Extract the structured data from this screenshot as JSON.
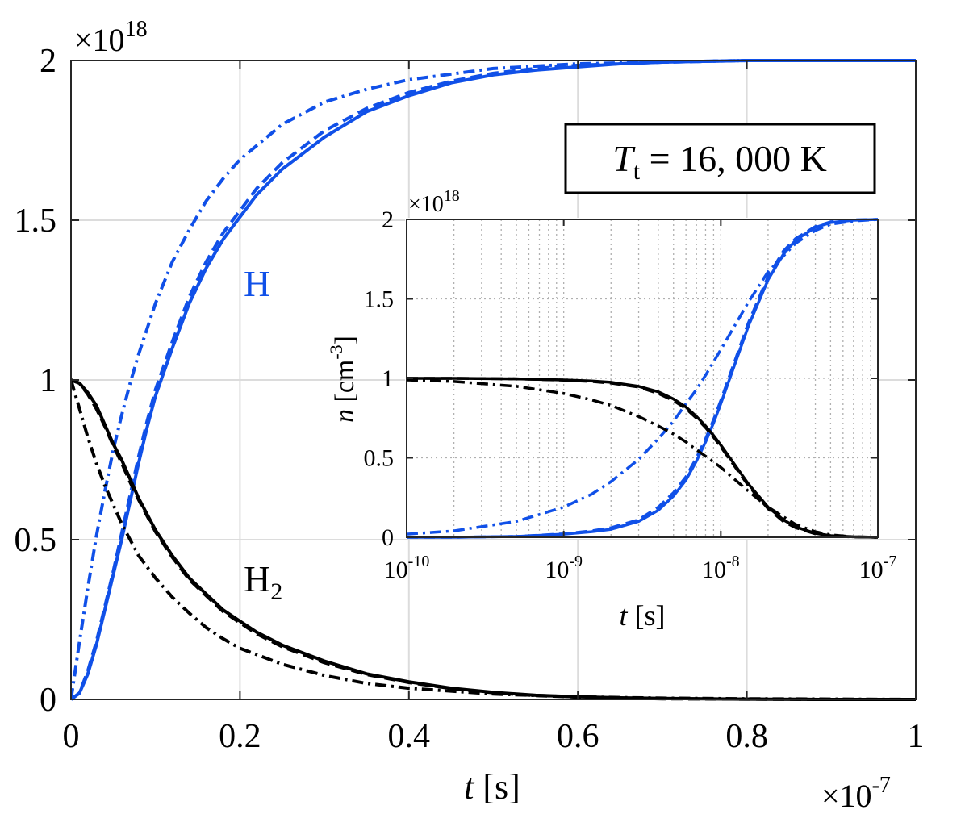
{
  "chart_data": [
    {
      "type": "line",
      "xlabel_var": "t",
      "xlabel_unit": "[s]",
      "x_multiplier": "×10",
      "x_multiplier_exp": "-7",
      "y_multiplier": "×10",
      "y_multiplier_exp": "18",
      "xlim": [
        0,
        1
      ],
      "ylim": [
        0,
        2
      ],
      "xticks": [
        "0",
        "0.2",
        "0.4",
        "0.6",
        "0.8",
        "1"
      ],
      "yticks": [
        "0",
        "0.5",
        "1",
        "1.5",
        "2"
      ],
      "grid": true,
      "annotation": {
        "var": "T",
        "sub": "t",
        "value": "= 16, 000 K"
      },
      "species_labels": [
        {
          "text": "H",
          "sub": "",
          "color": "#1050e8"
        },
        {
          "text": "H",
          "sub": "2",
          "color": "#000000"
        }
      ],
      "series": [
        {
          "species": "H",
          "style": "solid",
          "color": "#1050e8",
          "x": [
            0,
            0.01,
            0.02,
            0.03,
            0.04,
            0.05,
            0.06,
            0.07,
            0.08,
            0.09,
            0.1,
            0.12,
            0.14,
            0.16,
            0.18,
            0.2,
            0.22,
            0.25,
            0.3,
            0.35,
            0.4,
            0.45,
            0.5,
            0.55,
            0.6,
            0.65,
            0.7,
            0.8,
            0.9,
            1.0
          ],
          "y": [
            0,
            0.02,
            0.08,
            0.17,
            0.28,
            0.39,
            0.5,
            0.62,
            0.74,
            0.85,
            0.95,
            1.1,
            1.24,
            1.35,
            1.44,
            1.51,
            1.58,
            1.66,
            1.76,
            1.84,
            1.89,
            1.93,
            1.955,
            1.97,
            1.98,
            1.99,
            1.995,
            2.0,
            2.0,
            2.0
          ]
        },
        {
          "species": "H",
          "style": "dashed",
          "color": "#1050e8",
          "x": [
            0,
            0.01,
            0.02,
            0.03,
            0.04,
            0.05,
            0.06,
            0.07,
            0.08,
            0.09,
            0.1,
            0.12,
            0.14,
            0.16,
            0.18,
            0.2,
            0.22,
            0.25,
            0.3,
            0.35,
            0.4,
            0.45,
            0.5,
            0.55,
            0.6,
            0.65,
            0.7,
            0.8,
            0.9,
            1.0
          ],
          "y": [
            0,
            0.02,
            0.09,
            0.18,
            0.29,
            0.4,
            0.52,
            0.64,
            0.76,
            0.87,
            0.97,
            1.12,
            1.26,
            1.37,
            1.46,
            1.53,
            1.6,
            1.68,
            1.78,
            1.85,
            1.9,
            1.935,
            1.96,
            1.975,
            1.985,
            1.99,
            1.995,
            2.0,
            2.0,
            2.0
          ]
        },
        {
          "species": "H",
          "style": "dashdot",
          "color": "#1050e8",
          "x": [
            0,
            0.01,
            0.02,
            0.03,
            0.04,
            0.05,
            0.06,
            0.07,
            0.08,
            0.1,
            0.12,
            0.14,
            0.16,
            0.18,
            0.2,
            0.25,
            0.3,
            0.35,
            0.4,
            0.5,
            0.6,
            0.7,
            0.8,
            1.0
          ],
          "y": [
            0,
            0.18,
            0.35,
            0.51,
            0.65,
            0.78,
            0.89,
            0.99,
            1.08,
            1.24,
            1.37,
            1.47,
            1.56,
            1.63,
            1.69,
            1.8,
            1.87,
            1.91,
            1.94,
            1.975,
            1.99,
            1.995,
            2.0,
            2.0
          ]
        },
        {
          "species": "H2",
          "style": "solid",
          "color": "#000000",
          "x": [
            0,
            0.01,
            0.02,
            0.03,
            0.04,
            0.05,
            0.06,
            0.07,
            0.08,
            0.09,
            0.1,
            0.12,
            0.14,
            0.16,
            0.18,
            0.2,
            0.22,
            0.25,
            0.3,
            0.35,
            0.4,
            0.45,
            0.5,
            0.55,
            0.6,
            0.65,
            0.7,
            0.8,
            0.9,
            1.0
          ],
          "y": [
            1.0,
            0.99,
            0.96,
            0.92,
            0.86,
            0.8,
            0.75,
            0.69,
            0.63,
            0.58,
            0.53,
            0.45,
            0.38,
            0.33,
            0.28,
            0.245,
            0.21,
            0.17,
            0.12,
            0.08,
            0.055,
            0.035,
            0.022,
            0.013,
            0.008,
            0.005,
            0.003,
            0.001,
            0,
            0
          ]
        },
        {
          "species": "H2",
          "style": "dashed",
          "color": "#000000",
          "x": [
            0,
            0.01,
            0.02,
            0.03,
            0.04,
            0.05,
            0.06,
            0.07,
            0.08,
            0.09,
            0.1,
            0.12,
            0.14,
            0.16,
            0.18,
            0.2,
            0.22,
            0.25,
            0.3,
            0.35,
            0.4,
            0.45,
            0.5,
            0.55,
            0.6,
            0.65,
            0.7,
            0.8,
            0.9,
            1.0
          ],
          "y": [
            1.0,
            0.99,
            0.955,
            0.91,
            0.855,
            0.795,
            0.74,
            0.68,
            0.625,
            0.575,
            0.525,
            0.445,
            0.375,
            0.325,
            0.275,
            0.24,
            0.205,
            0.165,
            0.115,
            0.078,
            0.053,
            0.034,
            0.021,
            0.012,
            0.007,
            0.004,
            0.002,
            0.001,
            0,
            0
          ]
        },
        {
          "species": "H2",
          "style": "dashdot",
          "color": "#000000",
          "x": [
            0,
            0.01,
            0.02,
            0.03,
            0.04,
            0.05,
            0.06,
            0.07,
            0.08,
            0.1,
            0.12,
            0.14,
            0.16,
            0.18,
            0.2,
            0.25,
            0.3,
            0.35,
            0.4,
            0.5,
            0.6,
            0.7,
            0.8,
            1.0
          ],
          "y": [
            1.0,
            0.91,
            0.82,
            0.74,
            0.67,
            0.61,
            0.55,
            0.5,
            0.45,
            0.38,
            0.32,
            0.27,
            0.225,
            0.19,
            0.16,
            0.11,
            0.075,
            0.05,
            0.035,
            0.017,
            0.008,
            0.004,
            0.002,
            0
          ]
        }
      ]
    },
    {
      "type": "line",
      "role": "inset",
      "xscale": "log",
      "xlabel_var": "t",
      "xlabel_unit": "[s]",
      "ylabel_var": "n",
      "ylabel_unit": "[cm",
      "ylabel_unit_exp": "-3",
      "ylabel_unit_close": "]",
      "y_multiplier": "×10",
      "y_multiplier_exp": "18",
      "xlim": [
        1e-10,
        1e-07
      ],
      "ylim": [
        0,
        2
      ],
      "xticks": [
        {
          "value": 1e-10,
          "base": "10",
          "exp": "-10"
        },
        {
          "value": 1e-09,
          "base": "10",
          "exp": "-9"
        },
        {
          "value": 1e-08,
          "base": "10",
          "exp": "-8"
        },
        {
          "value": 1e-07,
          "base": "10",
          "exp": "-7"
        }
      ],
      "yticks": [
        "0",
        "0.5",
        "1",
        "1.5",
        "2"
      ],
      "grid": "dotted",
      "series": [
        {
          "species": "H",
          "style": "solid",
          "color": "#1050e8",
          "x": [
            1e-10,
            2e-10,
            5e-10,
            1e-09,
            1.5e-09,
            2e-09,
            3e-09,
            4e-09,
            5e-09,
            6e-09,
            7e-09,
            8e-09,
            9e-09,
            1e-08,
            1.2e-08,
            1.5e-08,
            2e-08,
            2.5e-08,
            3e-08,
            4e-08,
            5e-08,
            7e-08,
            1e-07
          ],
          "y": [
            0,
            0,
            0.005,
            0.02,
            0.035,
            0.05,
            0.1,
            0.17,
            0.26,
            0.36,
            0.48,
            0.6,
            0.72,
            0.84,
            1.06,
            1.33,
            1.62,
            1.78,
            1.87,
            1.95,
            1.98,
            1.995,
            2.0
          ]
        },
        {
          "species": "H",
          "style": "dashed",
          "color": "#1050e8",
          "x": [
            1e-10,
            2e-10,
            5e-10,
            1e-09,
            1.5e-09,
            2e-09,
            3e-09,
            4e-09,
            5e-09,
            6e-09,
            7e-09,
            8e-09,
            9e-09,
            1e-08,
            1.2e-08,
            1.5e-08,
            2e-08,
            2.5e-08,
            3e-08,
            4e-08,
            5e-08,
            7e-08,
            1e-07
          ],
          "y": [
            0,
            0,
            0.005,
            0.022,
            0.04,
            0.06,
            0.11,
            0.19,
            0.28,
            0.38,
            0.5,
            0.62,
            0.74,
            0.86,
            1.08,
            1.35,
            1.64,
            1.8,
            1.88,
            1.955,
            1.985,
            1.997,
            2.0
          ]
        },
        {
          "species": "H",
          "style": "dashdot",
          "color": "#1050e8",
          "x": [
            1e-10,
            2e-10,
            5e-10,
            1e-09,
            1.5e-09,
            2e-09,
            3e-09,
            4e-09,
            5e-09,
            6e-09,
            7e-09,
            8e-09,
            1e-08,
            1.5e-08,
            2e-08,
            3e-08,
            4e-08,
            5e-08,
            7e-08,
            1e-07
          ],
          "y": [
            0.02,
            0.04,
            0.1,
            0.19,
            0.27,
            0.35,
            0.49,
            0.62,
            0.73,
            0.84,
            0.93,
            1.02,
            1.18,
            1.48,
            1.67,
            1.85,
            1.93,
            1.97,
            1.99,
            2.0
          ]
        },
        {
          "species": "H2",
          "style": "solid",
          "color": "#000000",
          "x": [
            1e-10,
            2e-10,
            5e-10,
            1e-09,
            1.5e-09,
            2e-09,
            3e-09,
            4e-09,
            5e-09,
            6e-09,
            7e-09,
            8e-09,
            9e-09,
            1e-08,
            1.2e-08,
            1.5e-08,
            2e-08,
            2.5e-08,
            3e-08,
            4e-08,
            5e-08,
            7e-08,
            1e-07
          ],
          "y": [
            1.0,
            1.0,
            0.997,
            0.99,
            0.983,
            0.975,
            0.95,
            0.915,
            0.87,
            0.82,
            0.76,
            0.7,
            0.64,
            0.58,
            0.47,
            0.335,
            0.19,
            0.11,
            0.065,
            0.025,
            0.01,
            0.003,
            0
          ]
        },
        {
          "species": "H2",
          "style": "dashed",
          "color": "#000000",
          "x": [
            1e-10,
            2e-10,
            5e-10,
            1e-09,
            1.5e-09,
            2e-09,
            3e-09,
            4e-09,
            5e-09,
            6e-09,
            7e-09,
            8e-09,
            9e-09,
            1e-08,
            1.2e-08,
            1.5e-08,
            2e-08,
            2.5e-08,
            3e-08,
            4e-08,
            5e-08,
            7e-08,
            1e-07
          ],
          "y": [
            1.0,
            1.0,
            0.997,
            0.989,
            0.98,
            0.97,
            0.945,
            0.905,
            0.86,
            0.81,
            0.75,
            0.69,
            0.63,
            0.57,
            0.46,
            0.325,
            0.18,
            0.1,
            0.06,
            0.022,
            0.008,
            0.002,
            0
          ]
        },
        {
          "species": "H2",
          "style": "dashdot",
          "color": "#000000",
          "x": [
            1e-10,
            2e-10,
            5e-10,
            1e-09,
            1.5e-09,
            2e-09,
            3e-09,
            4e-09,
            5e-09,
            6e-09,
            7e-09,
            8e-09,
            1e-08,
            1.5e-08,
            2e-08,
            3e-08,
            4e-08,
            5e-08,
            7e-08,
            1e-07
          ],
          "y": [
            0.99,
            0.98,
            0.95,
            0.905,
            0.865,
            0.83,
            0.76,
            0.7,
            0.65,
            0.6,
            0.55,
            0.51,
            0.44,
            0.29,
            0.19,
            0.08,
            0.035,
            0.015,
            0.003,
            0
          ]
        }
      ]
    }
  ]
}
